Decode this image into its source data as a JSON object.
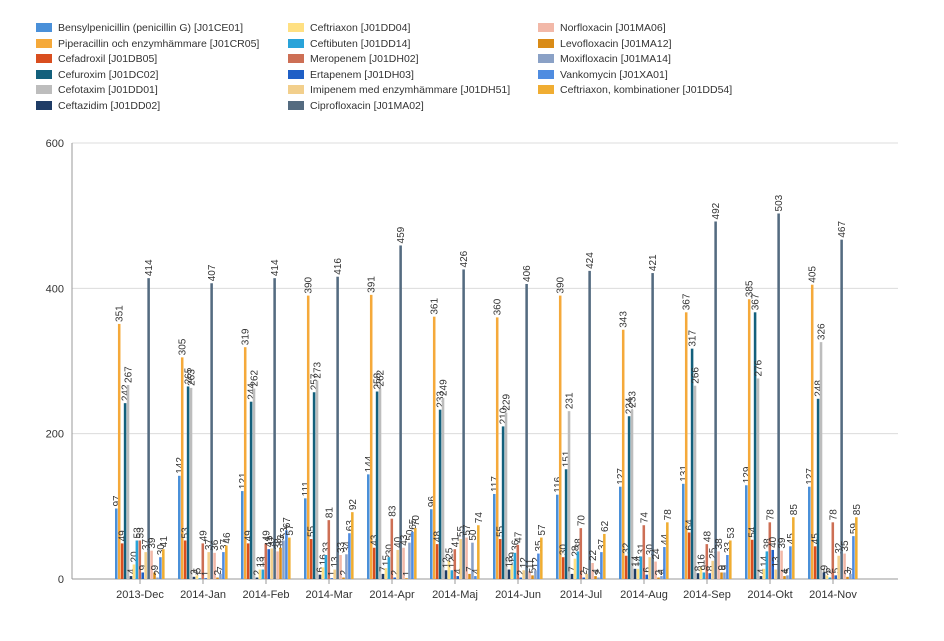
{
  "chart_data": {
    "type": "bar",
    "title": "",
    "xlabel": "",
    "ylabel": "",
    "ylim": [
      0,
      600
    ],
    "yticks": [
      "0",
      "200",
      "400",
      "600"
    ],
    "grid": true,
    "legend_position": "top-left",
    "categories": [
      "2013-Dec",
      "2014-Jan",
      "2014-Feb",
      "2014-Mar",
      "2014-Apr",
      "2014-Maj",
      "2014-Jun",
      "2014-Jul",
      "2014-Aug",
      "2014-Sep",
      "2014-Okt",
      "2014-Nov"
    ],
    "series": [
      {
        "name": "Bensylpenicillin (penicillin G) [J01CE01]",
        "color": "#4a90d9",
        "values": [
          97,
          142,
          121,
          111,
          144,
          96,
          117,
          116,
          127,
          131,
          129,
          127
        ]
      },
      {
        "name": "Piperacillin och enzymhämmare [J01CR05]",
        "color": "#f5a93a",
        "values": [
          351,
          305,
          319,
          390,
          391,
          361,
          360,
          390,
          343,
          367,
          385,
          405
        ]
      },
      {
        "name": "Cefadroxil [J01DB05]",
        "color": "#d94e1f",
        "values": [
          49,
          53,
          49,
          55,
          43,
          48,
          55,
          30,
          32,
          64,
          54,
          45
        ]
      },
      {
        "name": "Cefuroxim [J01DC02]",
        "color": "#13607c",
        "values": [
          242,
          265,
          244,
          257,
          258,
          233,
          210,
          151,
          224,
          317,
          367,
          248
        ]
      },
      {
        "name": "Cefotaxim [J01DD01]",
        "color": "#bdbdbd",
        "values": [
          267,
          263,
          262,
          273,
          262,
          249,
          229,
          231,
          233,
          266,
          276,
          326
        ]
      },
      {
        "name": "Ceftazidim [J01DD02]",
        "color": "#1f3c66",
        "values": [
          4,
          3,
          2,
          6,
          7,
          12,
          13,
          7,
          14,
          8,
          4,
          9
        ]
      },
      {
        "name": "Ceftriaxon [J01DD04]",
        "color": "#ffe082",
        "values": [
          20,
          5,
          13,
          16,
          15,
          25,
          19,
          28,
          14,
          16,
          14,
          5
        ]
      },
      {
        "name": "Ceftibuten [J01DD14]",
        "color": "#29a3d9",
        "values": [
          53,
          1,
          13,
          33,
          30,
          12,
          36,
          38,
          31,
          9,
          38,
          2
        ]
      },
      {
        "name": "Meropenem [J01DH02]",
        "color": "#cd6f55",
        "values": [
          53,
          49,
          49,
          81,
          83,
          41,
          47,
          70,
          74,
          48,
          78,
          78
        ]
      },
      {
        "name": "Ertapenem [J01DH03]",
        "color": "#1f5fc6",
        "values": [
          9,
          1,
          41,
          1,
          2,
          4,
          2,
          2,
          6,
          8,
          40,
          5
        ]
      },
      {
        "name": "Imipenem med enzymhämmare [J01DH51]",
        "color": "#f2cf8c",
        "values": [
          37,
          37,
          42,
          13,
          40,
          55,
          12,
          7,
          30,
          25,
          13,
          32
        ]
      },
      {
        "name": "Ciprofloxacin [J01MA02]",
        "color": "#546b80",
        "values": [
          414,
          407,
          414,
          416,
          459,
          426,
          406,
          424,
          421,
          492,
          503,
          467
        ]
      },
      {
        "name": "Norfloxacin [J01MA06]",
        "color": "#f2b8a8",
        "values": [
          39,
          36,
          38,
          33,
          43,
          57,
          11,
          22,
          24,
          38,
          39,
          35
        ]
      },
      {
        "name": "Levofloxacin [J01MA12]",
        "color": "#d98b17",
        "values": [
          9,
          2,
          43,
          2,
          1,
          7,
          5,
          4,
          2,
          9,
          4,
          3
        ]
      },
      {
        "name": "Moxifloxacin [J01MA14]",
        "color": "#8aa1c6",
        "values": [
          2,
          7,
          53,
          34,
          50,
          50,
          12,
          2,
          4,
          9,
          5,
          7
        ]
      },
      {
        "name": "Vankomycin [J01XA01]",
        "color": "#4f8ce0",
        "values": [
          30,
          37,
          67,
          63,
          65,
          4,
          35,
          37,
          44,
          33,
          45,
          59
        ]
      },
      {
        "name": "Ceftriaxon, kombinationer [J01DD54]",
        "color": "#f0ad32",
        "values": [
          41,
          46,
          57,
          92,
          70,
          74,
          57,
          62,
          78,
          53,
          85,
          85
        ]
      }
    ]
  }
}
